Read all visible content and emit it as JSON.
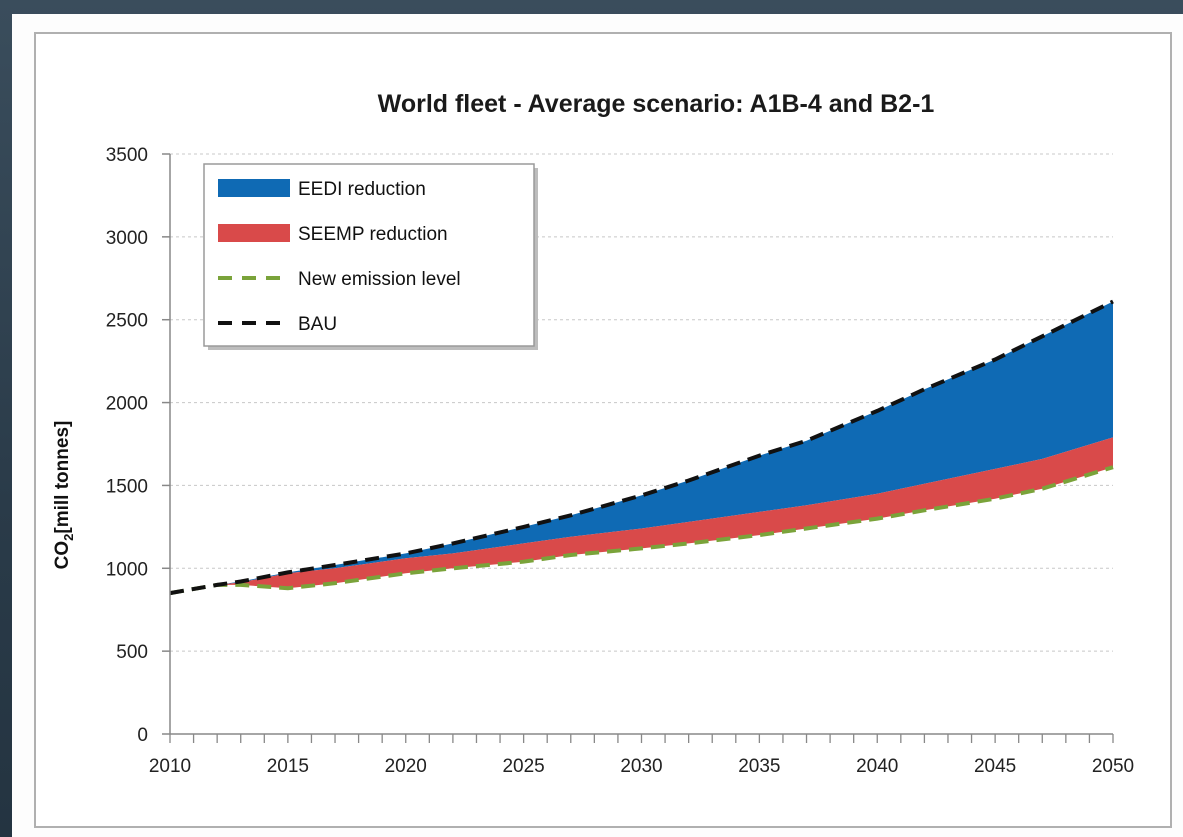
{
  "chart_data": {
    "type": "area",
    "title": "World fleet - Average scenario: A1B-4 and B2-1",
    "ylabel_main": "CO",
    "ylabel_sub": "2",
    "ylabel_rest": "[mill tonnes]",
    "xlabel": "",
    "xlim": [
      2010,
      2050
    ],
    "ylim": [
      0,
      3500
    ],
    "yticks": [
      0,
      500,
      1000,
      1500,
      2000,
      2500,
      3000,
      3500
    ],
    "xticks": [
      2010,
      2015,
      2020,
      2025,
      2030,
      2035,
      2040,
      2045,
      2050
    ],
    "grid": "horizontal dotted",
    "legend_position": "top-left",
    "years": [
      2010,
      2012,
      2013,
      2015,
      2017,
      2020,
      2022,
      2025,
      2027,
      2030,
      2032,
      2035,
      2037,
      2040,
      2042,
      2045,
      2047,
      2050
    ],
    "series": [
      {
        "name": "BAU",
        "values": [
          850,
          900,
          920,
          975,
          1020,
          1090,
          1150,
          1250,
          1320,
          1440,
          1530,
          1680,
          1770,
          1950,
          2080,
          2260,
          2400,
          2610
        ]
      },
      {
        "name": "EEDI reduction",
        "values": [
          850,
          900,
          915,
          970,
          1000,
          1060,
          1090,
          1150,
          1190,
          1240,
          1280,
          1340,
          1380,
          1450,
          1510,
          1600,
          1660,
          1790
        ]
      },
      {
        "name": "SEEMP reduction",
        "values": [
          850,
          900,
          900,
          880,
          910,
          970,
          1000,
          1040,
          1080,
          1120,
          1150,
          1200,
          1240,
          1300,
          1350,
          1420,
          1480,
          1610
        ]
      },
      {
        "name": "New emission level",
        "values": [
          850,
          900,
          900,
          880,
          910,
          970,
          1000,
          1040,
          1080,
          1120,
          1150,
          1200,
          1240,
          1300,
          1350,
          1420,
          1480,
          1610
        ]
      }
    ],
    "legend": [
      {
        "label": "EEDI reduction",
        "kind": "area",
        "color": "#0f6ab4"
      },
      {
        "label": "SEEMP reduction",
        "kind": "area",
        "color": "#d94a4a"
      },
      {
        "label": "New emission level",
        "kind": "dash",
        "color": "#7aa33a"
      },
      {
        "label": "BAU",
        "kind": "dash",
        "color": "#111111"
      }
    ],
    "colors": {
      "eedi": "#0f6ab4",
      "seemp": "#d94a4a",
      "new_level": "#7aa33a",
      "bau": "#111111"
    }
  }
}
